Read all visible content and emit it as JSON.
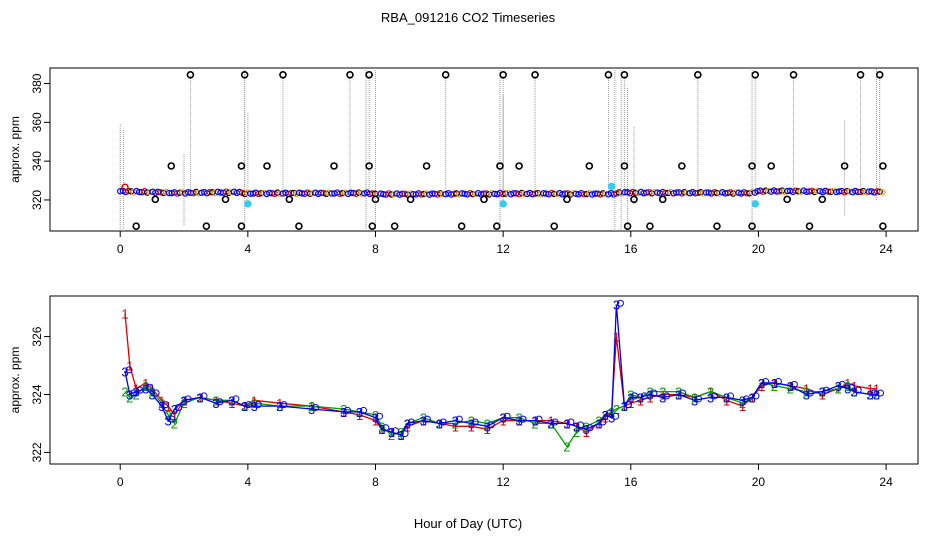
{
  "title": "RBA_091216  CO2 Timeseries",
  "xlabel": "Hour of Day (UTC)",
  "colors": {
    "black": "#000000",
    "red": "#dd0000",
    "green": "#00a000",
    "blue": "#0000ee",
    "cyan": "#33ccee",
    "gray": "#999999"
  },
  "chart_data": [
    {
      "type": "scatter",
      "ylabel": "approx. ppm",
      "xlim": [
        -2.2,
        25
      ],
      "ylim": [
        304,
        388
      ],
      "x_ticks": [
        "0",
        "4",
        "8",
        "12",
        "16",
        "20",
        "24"
      ],
      "y_ticks": [
        "320",
        "340",
        "360",
        "380"
      ],
      "baseline_segments": [
        {
          "x": [
            0.0,
            1.5,
            1.6,
            3.7,
            3.9,
            7.8,
            8.0,
            11.8,
            12.0,
            15.5,
            15.6,
            15.9
          ],
          "y": [
            324.5,
            323.8,
            323.6,
            324.0,
            323.4,
            323.5,
            323.0,
            323.2,
            323.3,
            323.1,
            323.6,
            323.9
          ]
        },
        {
          "x": [
            15.9,
            19.8,
            20.0,
            23.9
          ],
          "y": [
            323.8,
            323.6,
            324.6,
            324.2
          ]
        }
      ],
      "spikes_high": [
        2.2,
        3.9,
        5.1,
        7.2,
        7.8,
        10.2,
        12.0,
        13.0,
        15.3,
        15.8,
        18.1,
        19.9,
        21.1,
        23.2,
        23.8
      ],
      "spikes_low": [
        0.5,
        2.7,
        3.8,
        5.6,
        7.9,
        8.6,
        10.7,
        11.8,
        13.6,
        15.9,
        16.6,
        18.7,
        19.8,
        21.6,
        23.9
      ],
      "mid_high": [
        1.6,
        3.8,
        4.6,
        6.7,
        7.8,
        9.6,
        11.9,
        12.5,
        14.7,
        15.8,
        17.6,
        19.8,
        20.4,
        22.7,
        23.9
      ],
      "mid_low": [
        1.1,
        3.3,
        5.3,
        8.0,
        9.1,
        11.4,
        14.0,
        16.1,
        17.0,
        20.9,
        22.0
      ],
      "gray_lines": [
        {
          "x": 0.0,
          "y": [
            304,
            359
          ]
        },
        {
          "x": 0.1,
          "y": [
            304,
            356
          ]
        },
        {
          "x": 2.0,
          "y": [
            307,
            344
          ]
        },
        {
          "x": 3.9,
          "y": [
            304,
            388
          ]
        },
        {
          "x": 4.0,
          "y": [
            318,
            365
          ]
        },
        {
          "x": 7.7,
          "y": [
            304,
            388
          ]
        },
        {
          "x": 8.0,
          "y": [
            304,
            388
          ]
        },
        {
          "x": 11.9,
          "y": [
            304,
            388
          ]
        },
        {
          "x": 12.0,
          "y": [
            318,
            374
          ]
        },
        {
          "x": 15.5,
          "y": [
            304,
            388
          ]
        },
        {
          "x": 15.7,
          "y": [
            304,
            388
          ]
        },
        {
          "x": 15.9,
          "y": [
            304,
            378
          ]
        },
        {
          "x": 16.1,
          "y": [
            318,
            358
          ]
        },
        {
          "x": 19.8,
          "y": [
            304,
            388
          ]
        },
        {
          "x": 22.7,
          "y": [
            312,
            361
          ]
        },
        {
          "x": 23.7,
          "y": [
            320,
            388
          ]
        }
      ],
      "cyan_points": [
        {
          "x": 4.0,
          "y": 318
        },
        {
          "x": 12.0,
          "y": 318
        },
        {
          "x": 15.4,
          "y": 327
        },
        {
          "x": 19.9,
          "y": 318
        }
      ],
      "red_points": [
        {
          "x": 0.15,
          "y": 326.6
        }
      ]
    },
    {
      "type": "line",
      "ylabel": "approx. ppm",
      "xlim": [
        -2.2,
        25
      ],
      "ylim": [
        321.6,
        327.4
      ],
      "x_ticks": [
        "0",
        "4",
        "8",
        "12",
        "16",
        "20",
        "24"
      ],
      "y_ticks": [
        "322",
        "324",
        "326"
      ],
      "series": [
        {
          "name": "1",
          "color": "#dd0000",
          "x": [
            0.15,
            0.3,
            0.5,
            0.8,
            1.0,
            1.3,
            1.5,
            1.7,
            2.0,
            2.5,
            3.0,
            3.5,
            3.9,
            4.2,
            5.0,
            6.0,
            7.0,
            7.5,
            8.0,
            8.2,
            8.5,
            8.8,
            9.0,
            9.5,
            10.0,
            10.5,
            11.0,
            11.5,
            12.0,
            12.5,
            13.0,
            13.5,
            14.0,
            14.3,
            14.6,
            15.0,
            15.2,
            15.4,
            15.55,
            15.8,
            16.0,
            16.3,
            16.6,
            17.0,
            17.5,
            18.0,
            18.5,
            19.0,
            19.5,
            19.8,
            20.1,
            20.5,
            21.0,
            21.5,
            22.0,
            22.5,
            22.8,
            23.0,
            23.5,
            23.7
          ],
          "y": [
            326.8,
            325.0,
            324.2,
            324.4,
            324.2,
            323.8,
            323.6,
            323.3,
            323.8,
            323.9,
            323.8,
            323.7,
            323.6,
            323.8,
            323.7,
            323.6,
            323.4,
            323.3,
            323.1,
            322.8,
            322.7,
            322.6,
            322.9,
            323.1,
            323.0,
            322.9,
            322.9,
            322.8,
            323.1,
            323.1,
            323.1,
            323.1,
            323.0,
            322.9,
            322.7,
            323.0,
            323.2,
            323.4,
            326.0,
            323.6,
            323.7,
            323.8,
            323.9,
            324.0,
            324.0,
            323.9,
            324.1,
            323.8,
            323.6,
            323.9,
            324.3,
            324.4,
            324.3,
            324.2,
            324.0,
            324.2,
            324.4,
            324.3,
            324.2,
            324.2
          ]
        },
        {
          "name": "2",
          "color": "#00a000",
          "x": [
            0.15,
            0.3,
            0.5,
            0.8,
            1.0,
            1.3,
            1.5,
            1.7,
            2.0,
            2.5,
            3.0,
            3.5,
            3.9,
            4.2,
            5.0,
            6.0,
            7.0,
            7.5,
            8.0,
            8.2,
            8.5,
            8.8,
            9.0,
            9.5,
            10.0,
            10.5,
            11.0,
            11.5,
            12.0,
            12.5,
            13.0,
            13.5,
            14.0,
            14.3,
            14.6,
            15.0,
            15.2,
            15.4,
            15.55,
            15.8,
            16.0,
            16.3,
            16.6,
            17.0,
            17.5,
            18.0,
            18.5,
            19.0,
            19.5,
            19.8,
            20.1,
            20.5,
            21.0,
            21.5,
            22.0,
            22.5,
            22.8,
            23.0,
            23.5,
            23.7
          ],
          "y": [
            324.1,
            323.9,
            324.0,
            324.3,
            324.1,
            323.7,
            323.3,
            323.0,
            323.7,
            323.9,
            323.8,
            323.8,
            323.6,
            323.7,
            323.6,
            323.6,
            323.5,
            323.4,
            323.3,
            322.9,
            322.6,
            322.7,
            323.0,
            323.2,
            323.0,
            323.0,
            323.1,
            323.0,
            323.2,
            323.2,
            323.0,
            323.0,
            322.2,
            322.7,
            322.9,
            323.1,
            323.3,
            323.4,
            323.5,
            323.6,
            324.0,
            323.9,
            324.1,
            324.1,
            324.1,
            323.9,
            324.1,
            323.9,
            323.7,
            323.9,
            324.4,
            324.3,
            324.2,
            324.1,
            324.1,
            324.2,
            324.3,
            324.1,
            324.0,
            324.0
          ]
        },
        {
          "name": "3",
          "color": "#0000ee",
          "x": [
            0.15,
            0.3,
            0.5,
            0.8,
            1.0,
            1.3,
            1.5,
            1.7,
            2.0,
            2.5,
            3.0,
            3.5,
            3.9,
            4.2,
            5.0,
            6.0,
            7.0,
            7.5,
            8.0,
            8.2,
            8.5,
            8.8,
            9.0,
            9.5,
            10.0,
            10.5,
            11.0,
            11.5,
            12.0,
            12.5,
            13.0,
            13.5,
            14.0,
            14.3,
            14.6,
            15.0,
            15.2,
            15.4,
            15.55,
            15.8,
            16.0,
            16.3,
            16.6,
            17.0,
            17.5,
            18.0,
            18.5,
            19.0,
            19.5,
            19.8,
            20.1,
            20.5,
            21.0,
            21.5,
            22.0,
            22.5,
            22.8,
            23.0,
            23.5,
            23.7
          ],
          "y": [
            324.8,
            324.0,
            324.1,
            324.2,
            324.0,
            323.6,
            323.1,
            323.5,
            323.8,
            323.9,
            323.7,
            323.8,
            323.6,
            323.6,
            323.6,
            323.5,
            323.4,
            323.4,
            323.2,
            322.8,
            322.7,
            322.6,
            323.0,
            323.1,
            323.0,
            323.1,
            323.0,
            322.9,
            323.2,
            323.1,
            323.1,
            323.0,
            323.0,
            322.9,
            322.8,
            323.0,
            323.3,
            323.2,
            327.1,
            323.6,
            323.9,
            323.9,
            324.0,
            323.9,
            324.0,
            323.8,
            323.9,
            323.9,
            323.8,
            323.9,
            324.4,
            324.4,
            324.3,
            324.0,
            324.1,
            324.3,
            324.2,
            324.1,
            324.0,
            324.0
          ]
        }
      ]
    }
  ]
}
